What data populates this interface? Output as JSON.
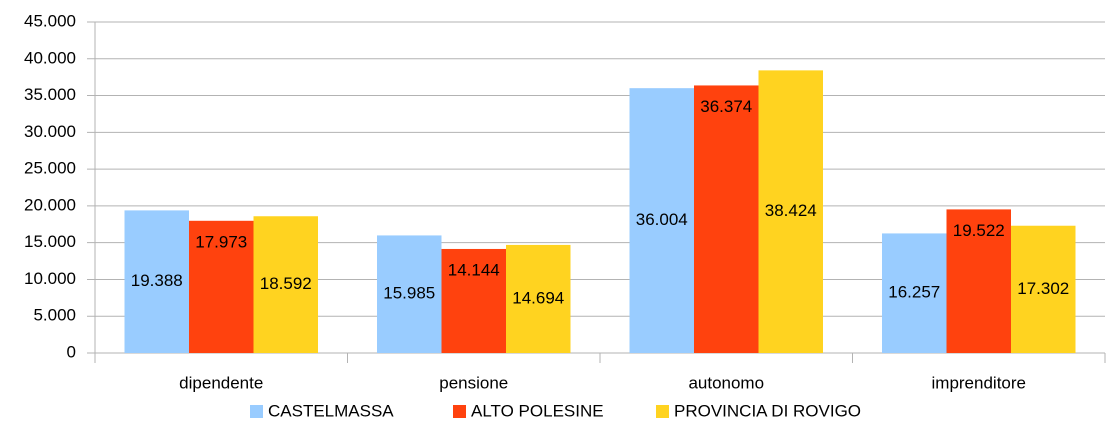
{
  "chart_data": {
    "type": "bar",
    "categories": [
      "dipendente",
      "pensione",
      "autonomo",
      "imprenditore"
    ],
    "series": [
      {
        "name": "CASTELMASSA",
        "color": "#99ccff",
        "values": [
          19388,
          15985,
          36004,
          16257
        ],
        "value_labels": [
          "19.388",
          "15.985",
          "36.004",
          "16.257"
        ]
      },
      {
        "name": "ALTO POLESINE",
        "color": "#ff420e",
        "values": [
          17973,
          14144,
          36374,
          19522
        ],
        "value_labels": [
          "17.973",
          "14.144",
          "36.374",
          "19.522"
        ]
      },
      {
        "name": "PROVINCIA DI ROVIGO",
        "color": "#ffd320",
        "values": [
          18592,
          14694,
          38424,
          17302
        ],
        "value_labels": [
          "18.592",
          "14.694",
          "38.424",
          "17.302"
        ]
      }
    ],
    "ylim": [
      0,
      45000
    ],
    "yticks": [
      0,
      {
        "value": 5000,
        "label": "5.000"
      },
      {
        "value": 10000,
        "label": "10.000"
      },
      {
        "value": 15000,
        "label": "15.000"
      },
      {
        "value": 20000,
        "label": "20.000"
      },
      {
        "value": 25000,
        "label": "25.000"
      },
      {
        "value": 30000,
        "label": "30.000"
      },
      {
        "value": 35000,
        "label": "35.000"
      },
      {
        "value": 40000,
        "label": "40.000"
      },
      {
        "value": 45000,
        "label": "45.000"
      }
    ],
    "grid": true,
    "legend": "bottom"
  }
}
